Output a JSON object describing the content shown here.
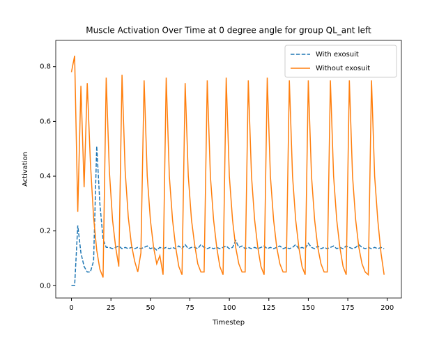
{
  "chart_data": {
    "type": "line",
    "title": "Muscle Activation Over Time at 0 degree angle for group QL_ant left",
    "xlabel": "Timestep",
    "ylabel": "Activation",
    "x": [
      0,
      2,
      4,
      6,
      8,
      10,
      12,
      14,
      16,
      18,
      20,
      22,
      24,
      26,
      28,
      30,
      32,
      34,
      36,
      38,
      40,
      42,
      44,
      46,
      48,
      50,
      52,
      54,
      56,
      58,
      60,
      62,
      64,
      66,
      68,
      70,
      72,
      74,
      76,
      78,
      80,
      82,
      84,
      86,
      88,
      90,
      92,
      94,
      96,
      98,
      100,
      102,
      104,
      106,
      108,
      110,
      112,
      114,
      116,
      118,
      120,
      122,
      124,
      126,
      128,
      130,
      132,
      134,
      136,
      138,
      140,
      142,
      144,
      146,
      148,
      150,
      152,
      154,
      156,
      158,
      160,
      162,
      164,
      166,
      168,
      170,
      172,
      174,
      176,
      178,
      180,
      182,
      184,
      186,
      188,
      190,
      192,
      194,
      196,
      198
    ],
    "series": [
      {
        "name": "With exosuit",
        "color": "#1f77b4",
        "linestyle": "dashed",
        "values": [
          0,
          0,
          0.22,
          0.12,
          0.07,
          0.05,
          0.05,
          0.09,
          0.51,
          0.3,
          0.17,
          0.14,
          0.14,
          0.135,
          0.14,
          0.145,
          0.135,
          0.14,
          0.135,
          0.14,
          0.135,
          0.14,
          0.135,
          0.14,
          0.145,
          0.135,
          0.14,
          0.13,
          0.14,
          0.135,
          0.14,
          0.135,
          0.14,
          0.135,
          0.145,
          0.135,
          0.15,
          0.135,
          0.14,
          0.14,
          0.135,
          0.15,
          0.14,
          0.135,
          0.14,
          0.135,
          0.14,
          0.135,
          0.14,
          0.145,
          0.135,
          0.14,
          0.165,
          0.14,
          0.145,
          0.135,
          0.14,
          0.135,
          0.14,
          0.135,
          0.14,
          0.145,
          0.135,
          0.14,
          0.135,
          0.14,
          0.145,
          0.135,
          0.14,
          0.135,
          0.14,
          0.15,
          0.135,
          0.14,
          0.135,
          0.155,
          0.14,
          0.135,
          0.145,
          0.135,
          0.14,
          0.135,
          0.14,
          0.145,
          0.135,
          0.14,
          0.135,
          0.145,
          0.14,
          0.135,
          0.14,
          0.15,
          0.14,
          0.135,
          0.14,
          0.135,
          0.14,
          0.135,
          0.14,
          0.135
        ]
      },
      {
        "name": "Without exosuit",
        "color": "#ff7f0e",
        "linestyle": "solid",
        "values": [
          0.78,
          0.84,
          0.27,
          0.73,
          0.36,
          0.74,
          0.45,
          0.25,
          0.13,
          0.06,
          0.03,
          0.76,
          0.42,
          0.24,
          0.14,
          0.07,
          0.77,
          0.42,
          0.25,
          0.15,
          0.09,
          0.05,
          0.12,
          0.75,
          0.4,
          0.24,
          0.14,
          0.08,
          0.11,
          0.04,
          0.76,
          0.4,
          0.24,
          0.14,
          0.07,
          0.04,
          0.74,
          0.4,
          0.24,
          0.15,
          0.08,
          0.05,
          0.05,
          0.75,
          0.4,
          0.24,
          0.14,
          0.07,
          0.04,
          0.76,
          0.4,
          0.24,
          0.14,
          0.08,
          0.05,
          0.05,
          0.75,
          0.4,
          0.24,
          0.14,
          0.07,
          0.04,
          0.76,
          0.4,
          0.24,
          0.14,
          0.08,
          0.05,
          0.05,
          0.75,
          0.4,
          0.24,
          0.14,
          0.07,
          0.04,
          0.75,
          0.4,
          0.24,
          0.14,
          0.08,
          0.05,
          0.05,
          0.75,
          0.4,
          0.24,
          0.14,
          0.07,
          0.04,
          0.75,
          0.4,
          0.24,
          0.14,
          0.08,
          0.05,
          0.04,
          0.75,
          0.4,
          0.24,
          0.12,
          0.04
        ]
      }
    ],
    "xlim": [
      -9.95,
      208.95
    ],
    "ylim": [
      -0.045,
      0.896
    ],
    "xticks": [
      0,
      25,
      50,
      75,
      100,
      125,
      150,
      175,
      200
    ],
    "yticks": [
      {
        "value": 0,
        "label": "0.0"
      },
      0.2,
      0.4,
      0.6,
      0.8
    ],
    "legend": "upper right"
  }
}
